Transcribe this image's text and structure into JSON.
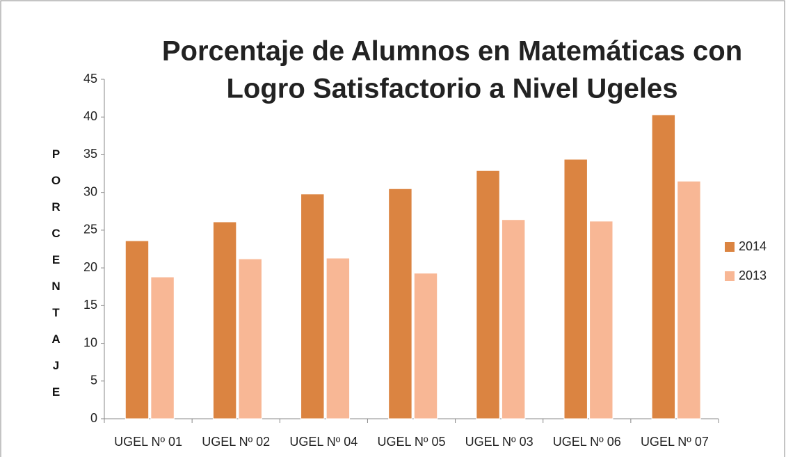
{
  "chart_data": {
    "type": "bar",
    "title": [
      "Porcentaje de Alumnos en Matemáticas con",
      "Logro Satisfactorio a Nivel Ugeles"
    ],
    "y_label": "PORCENTAJE",
    "categories": [
      "UGEL Nº 01",
      "UGEL Nº 02",
      "UGEL Nº 04",
      "UGEL Nº 05",
      "UGEL Nº 03",
      "UGEL Nº 06",
      "UGEL Nº 07"
    ],
    "series": [
      {
        "name": "2014",
        "color": "#db8441",
        "values": [
          23.6,
          26.1,
          29.8,
          30.5,
          32.9,
          34.4,
          40.3
        ]
      },
      {
        "name": "2013",
        "color": "#f8b795",
        "values": [
          18.8,
          21.2,
          21.3,
          19.3,
          26.4,
          26.2,
          31.5
        ]
      }
    ],
    "ylim": [
      0,
      45
    ],
    "yticks": [
      0,
      5,
      10,
      15,
      20,
      25,
      30,
      35,
      40,
      45
    ],
    "grid": false,
    "legend": "right"
  }
}
